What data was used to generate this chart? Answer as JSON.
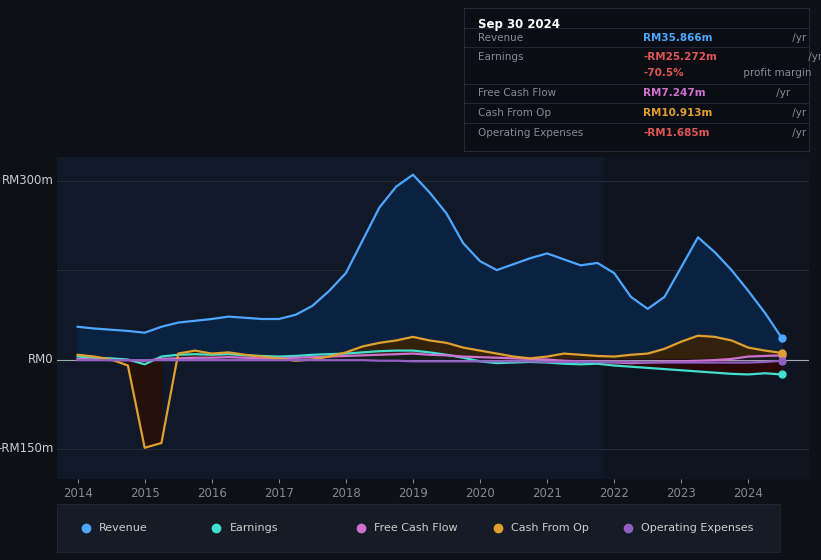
{
  "bg_color": "#0d1117",
  "plot_bg_color": "#111827",
  "info_box": {
    "title": "Sep 30 2024",
    "rows": [
      {
        "label": "Revenue",
        "value": "RM35.866m",
        "suffix": " /yr",
        "value_color": "#4da6ff"
      },
      {
        "label": "Earnings",
        "value": "-RM25.272m",
        "suffix": " /yr",
        "value_color": "#e05555"
      },
      {
        "label": "",
        "value": "-70.5%",
        "suffix": " profit margin",
        "value_color": "#e05555"
      },
      {
        "label": "Free Cash Flow",
        "value": "RM7.247m",
        "suffix": " /yr",
        "value_color": "#d070d0"
      },
      {
        "label": "Cash From Op",
        "value": "RM10.913m",
        "suffix": " /yr",
        "value_color": "#e0a030"
      },
      {
        "label": "Operating Expenses",
        "value": "-RM1.685m",
        "suffix": " /yr",
        "value_color": "#e05555"
      }
    ]
  },
  "legend": [
    {
      "label": "Revenue",
      "color": "#4da6ff"
    },
    {
      "label": "Earnings",
      "color": "#40e0d0"
    },
    {
      "label": "Free Cash Flow",
      "color": "#d070d0"
    },
    {
      "label": "Cash From Op",
      "color": "#e0a030"
    },
    {
      "label": "Operating Expenses",
      "color": "#9060c0"
    }
  ],
  "years": [
    2014.0,
    2014.25,
    2014.5,
    2014.75,
    2015.0,
    2015.25,
    2015.5,
    2015.75,
    2016.0,
    2016.25,
    2016.5,
    2016.75,
    2017.0,
    2017.25,
    2017.5,
    2017.75,
    2018.0,
    2018.25,
    2018.5,
    2018.75,
    2019.0,
    2019.25,
    2019.5,
    2019.75,
    2020.0,
    2020.25,
    2020.5,
    2020.75,
    2021.0,
    2021.25,
    2021.5,
    2021.75,
    2022.0,
    2022.25,
    2022.5,
    2022.75,
    2023.0,
    2023.25,
    2023.5,
    2023.75,
    2024.0,
    2024.25,
    2024.5
  ],
  "revenue": [
    55,
    52,
    50,
    48,
    45,
    55,
    62,
    65,
    68,
    72,
    70,
    68,
    68,
    75,
    90,
    115,
    145,
    200,
    255,
    290,
    310,
    280,
    245,
    195,
    165,
    150,
    160,
    170,
    178,
    168,
    158,
    162,
    145,
    105,
    85,
    105,
    155,
    205,
    180,
    150,
    115,
    78,
    36
  ],
  "earnings": [
    5,
    3,
    2,
    0,
    -8,
    5,
    8,
    9,
    8,
    9,
    7,
    6,
    5,
    6,
    8,
    9,
    10,
    12,
    14,
    15,
    15,
    12,
    8,
    3,
    -3,
    -6,
    -5,
    -4,
    -5,
    -7,
    -8,
    -7,
    -10,
    -12,
    -14,
    -16,
    -18,
    -20,
    -22,
    -24,
    -25,
    -23,
    -25
  ],
  "free_cash_flow": [
    1,
    0,
    -1,
    -1,
    -2,
    1,
    2,
    3,
    3,
    4,
    3,
    2,
    2,
    3,
    4,
    5,
    6,
    7,
    8,
    9,
    10,
    8,
    7,
    5,
    4,
    3,
    2,
    1,
    0,
    -2,
    -3,
    -4,
    -5,
    -6,
    -5,
    -4,
    -3,
    -2,
    -1,
    1,
    5,
    6,
    7
  ],
  "cash_from_op": [
    8,
    5,
    0,
    -10,
    -148,
    -140,
    10,
    15,
    10,
    12,
    8,
    5,
    2,
    -2,
    0,
    5,
    12,
    22,
    28,
    32,
    38,
    32,
    28,
    20,
    15,
    10,
    5,
    2,
    5,
    10,
    8,
    6,
    5,
    8,
    10,
    18,
    30,
    40,
    38,
    32,
    20,
    15,
    11
  ],
  "operating_expenses": [
    -1,
    -1,
    -1,
    -1,
    -1,
    -1,
    -1,
    -1,
    -1,
    -1,
    -1,
    -1,
    -1,
    -1,
    -1,
    -1,
    -1,
    -1,
    -2,
    -2,
    -3,
    -3,
    -3,
    -3,
    -3,
    -3,
    -3,
    -3,
    -4,
    -4,
    -4,
    -4,
    -4,
    -4,
    -5,
    -5,
    -5,
    -5,
    -5,
    -5,
    -5,
    -4,
    -2
  ],
  "revenue_color": "#4da6ff",
  "revenue_fill": "#0a2a4a",
  "earnings_color": "#40e0d0",
  "earnings_fill_neg": "#2a0a0a",
  "fcf_color": "#d070d0",
  "cashop_color": "#e0a030",
  "cashop_fill": "#2a1a05",
  "opex_color": "#9060c0",
  "right_shade_color": "#0e1520",
  "ylim": [
    -200,
    340
  ],
  "xlim": [
    2013.7,
    2024.9
  ],
  "xticks": [
    2014,
    2015,
    2016,
    2017,
    2018,
    2019,
    2020,
    2021,
    2022,
    2023,
    2024
  ],
  "gridline_color": "#2a2a3a",
  "zero_line_color": "#ffffff",
  "tick_color": "#888888",
  "label_color": "#cccccc"
}
